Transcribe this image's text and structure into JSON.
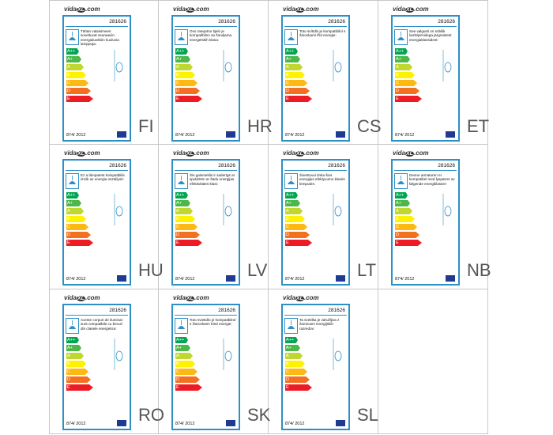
{
  "brand": {
    "prefix": "vida",
    "mark": "XL",
    "suffix": ".com"
  },
  "product_number": "281626",
  "regulation": "874/ 2012",
  "energy_classes": [
    "A++",
    "A+",
    "A",
    "B",
    "C",
    "D",
    "E"
  ],
  "labels": [
    {
      "code": "FI",
      "text": "Tähän valaisimeen soveltuvat seuraaviin energialuokkiin kuuluvia lamppuja:"
    },
    {
      "code": "HR",
      "text": "Ovo rasvjetno tijelo je kompatibilno sa žaruljama energetskih klasa:"
    },
    {
      "code": "CS",
      "text": "Toto svítidlo je kompatibilní s žárovkami tříd energie:"
    },
    {
      "code": "ET",
      "text": "See valgusti on sobilik lambipirnidega järgmistest energiaklassidest:"
    },
    {
      "code": "HU",
      "text": "Ez a lámpatest kompatibilis izzók az energia osztályok:"
    },
    {
      "code": "LV",
      "text": "Šis gaismeklis ir saderīgs ar spuldzēm ar šādu energijas efektivitātes klasi:"
    },
    {
      "code": "LT",
      "text": "Šviestuvui tinka šios energijos efektyvumo klasės lemputės:"
    },
    {
      "code": "NB",
      "text": "Denne armaturen er kompatibel med lyspærer av følgende energiklasser:"
    },
    {
      "code": "RO",
      "text": "Aceste corpuri de iluminat sunt compatibile cu becuri din clasele energetice:"
    },
    {
      "code": "SK",
      "text": "Toto svietidlo je kompatibilné s žiarovkami tried energie:"
    },
    {
      "code": "SL",
      "text": "Ta svetilka je združljiva z žarnicami energijskih razredov:"
    }
  ]
}
